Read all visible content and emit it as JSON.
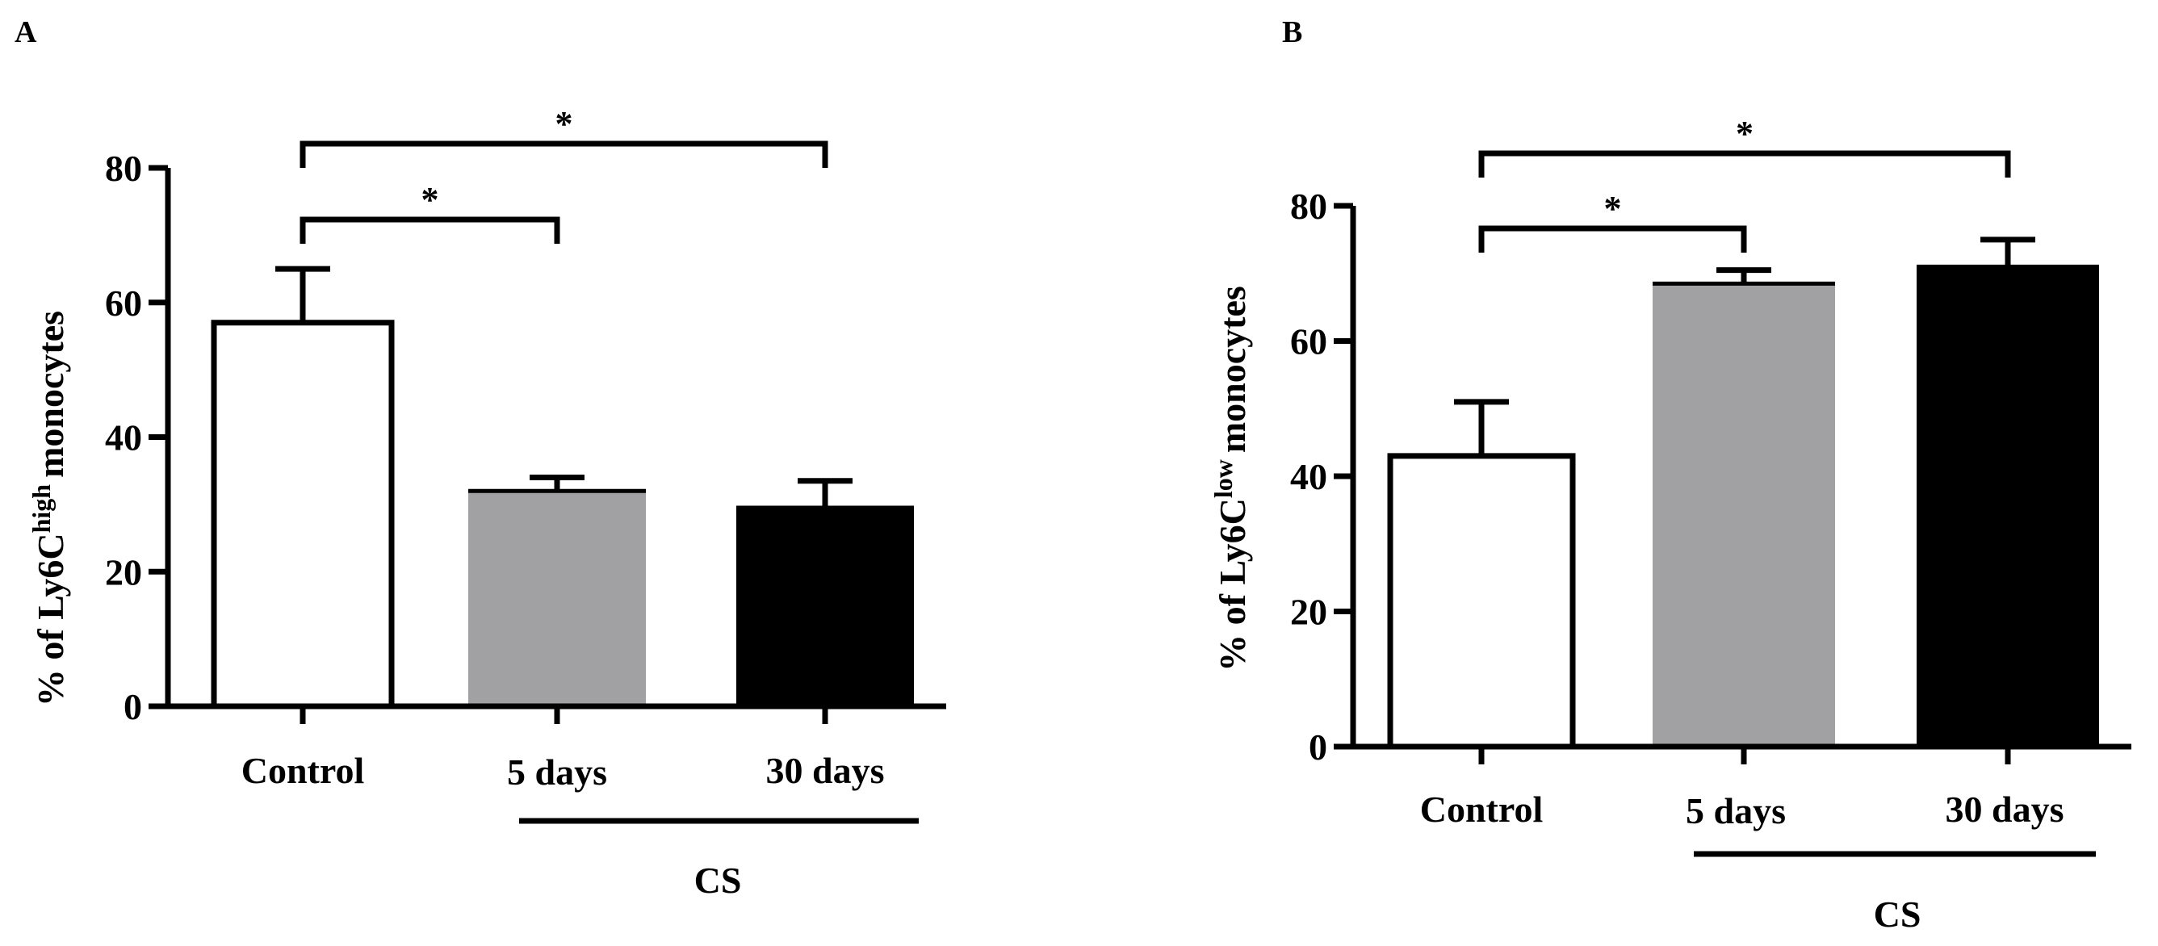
{
  "colors": {
    "control": "#ffffff",
    "cs5": "#a1a1a4",
    "cs30": "#000000",
    "axis": "#000000"
  },
  "chart_data": [
    {
      "panel_label": "A",
      "type": "bar",
      "ylabel_prefix": "% of Ly6C",
      "ylabel_sup": "high",
      "ylabel_suffix": "monocytes",
      "categories": [
        "Control",
        "5 days",
        "30 days"
      ],
      "values": [
        57,
        32,
        29.5
      ],
      "errors": [
        8,
        2,
        4
      ],
      "ylim": [
        0,
        80
      ],
      "yticks": [
        0,
        20,
        40,
        60,
        80
      ],
      "group_label": "CS",
      "significance": [
        {
          "from": 0,
          "to": 1,
          "label": "*"
        },
        {
          "from": 0,
          "to": 2,
          "label": "*"
        }
      ]
    },
    {
      "panel_label": "B",
      "type": "bar",
      "ylabel_prefix": "% of Ly6C",
      "ylabel_sup": "low",
      "ylabel_suffix": "monocytes",
      "categories": [
        "Control",
        "5 days",
        "30 days"
      ],
      "values": [
        43,
        68.5,
        71
      ],
      "errors": [
        8,
        2,
        4
      ],
      "ylim": [
        0,
        80
      ],
      "yticks": [
        0,
        20,
        40,
        60,
        80
      ],
      "group_label": "CS",
      "significance": [
        {
          "from": 0,
          "to": 1,
          "label": "*"
        },
        {
          "from": 0,
          "to": 2,
          "label": "*"
        }
      ]
    }
  ]
}
